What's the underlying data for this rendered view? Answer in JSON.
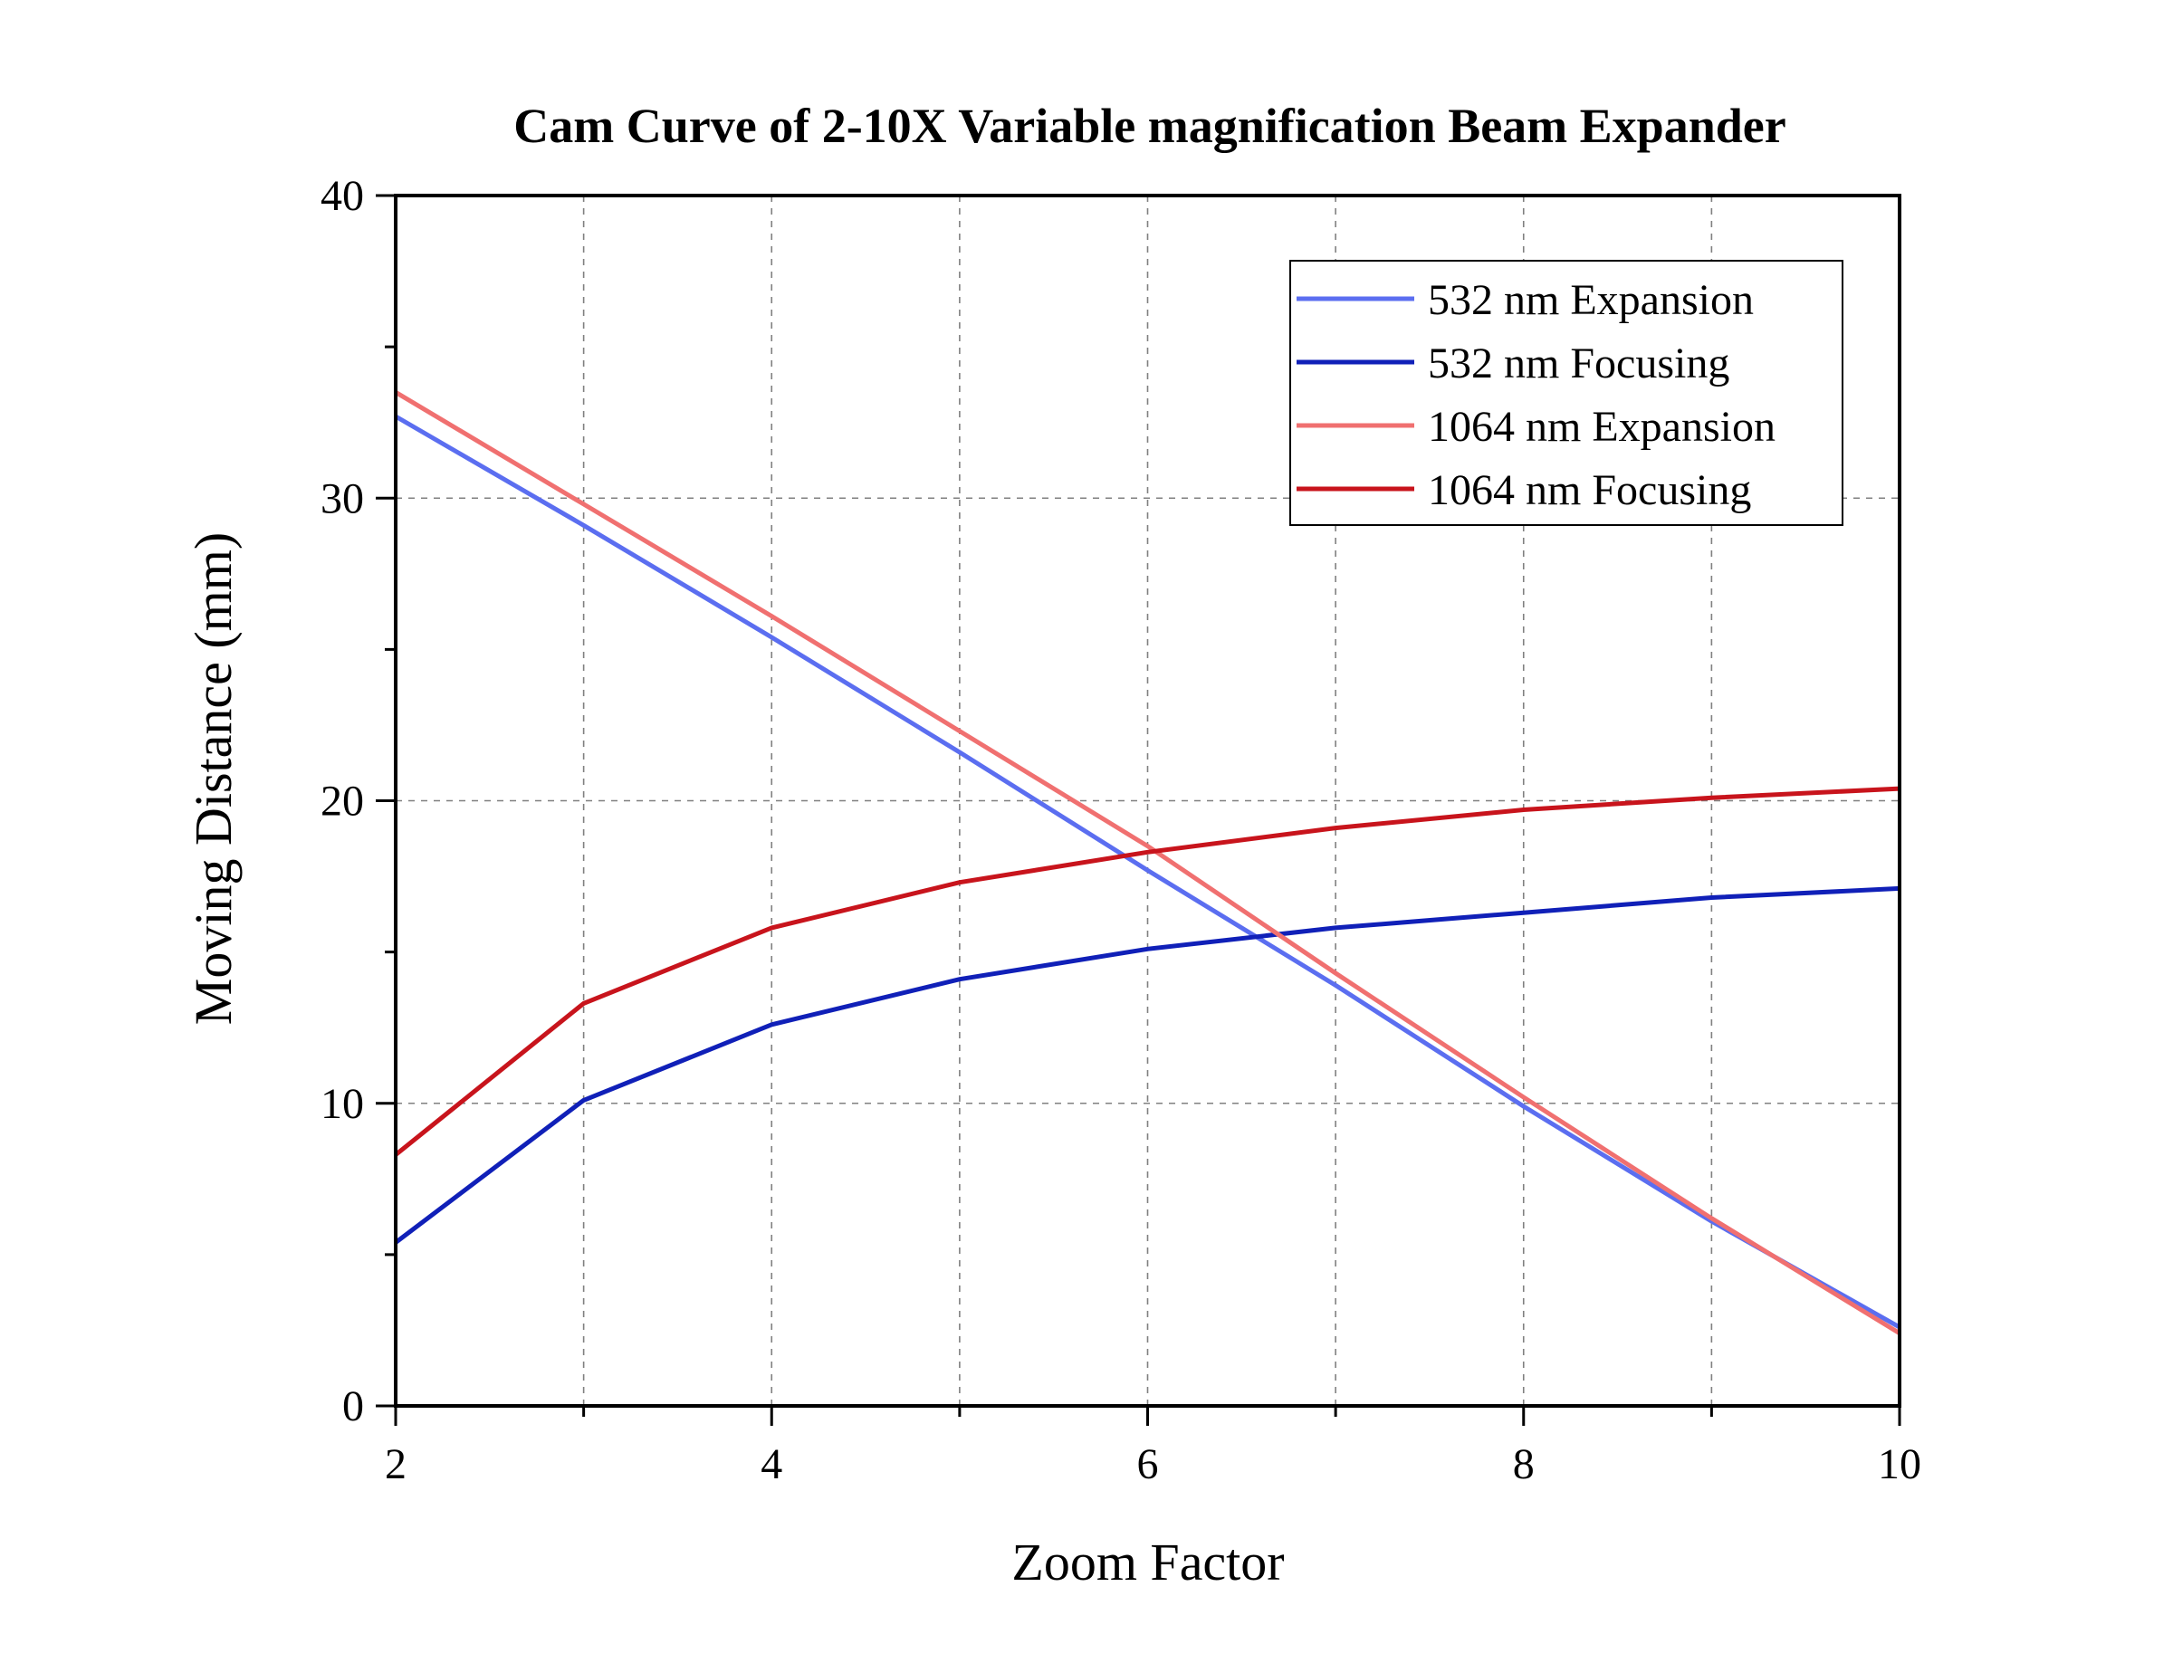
{
  "chart_data": {
    "type": "line",
    "title": "Cam Curve of 2-10X Variable magnification Beam Expander",
    "xlabel": "Zoom Factor",
    "ylabel": "Moving Distance (mm)",
    "xlim": [
      2,
      10
    ],
    "ylim": [
      0,
      40
    ],
    "xticks": [
      2,
      4,
      6,
      8,
      10
    ],
    "yticks": [
      0,
      10,
      20,
      30,
      40
    ],
    "grid": true,
    "legend_position": "top-right",
    "x": [
      2,
      3,
      4,
      5,
      6,
      7,
      8,
      9,
      10
    ],
    "series": [
      {
        "name": "532 nm Expansion",
        "color": "#5b6ef0",
        "values": [
          32.7,
          29.1,
          25.4,
          21.6,
          17.7,
          13.9,
          9.9,
          6.1,
          2.6
        ]
      },
      {
        "name": "532 nm Focusing",
        "color": "#1020b8",
        "values": [
          5.4,
          10.1,
          12.6,
          14.1,
          15.1,
          15.8,
          16.3,
          16.8,
          17.1
        ]
      },
      {
        "name": "1064 nm Expansion",
        "color": "#f07070",
        "values": [
          33.5,
          29.8,
          26.1,
          22.3,
          18.5,
          14.3,
          10.2,
          6.2,
          2.4
        ]
      },
      {
        "name": "1064 nm Focusing",
        "color": "#c8141c",
        "values": [
          8.3,
          13.3,
          15.8,
          17.3,
          18.3,
          19.1,
          19.7,
          20.1,
          20.4
        ]
      }
    ]
  }
}
